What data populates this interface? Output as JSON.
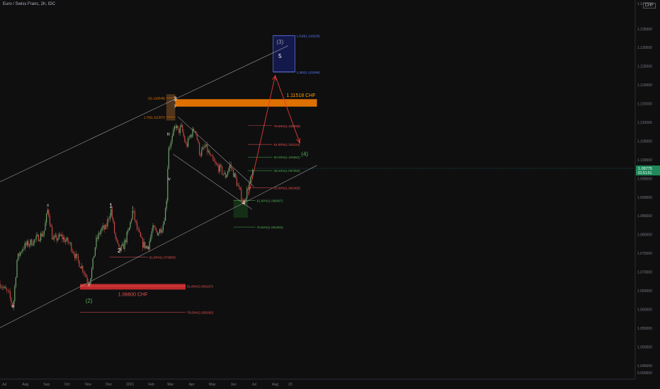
{
  "symbol_title": "Euro / Swiss Franc, 2h, IDC",
  "currency": "CHF",
  "chart_data": {
    "type": "candlestick",
    "instrument": "EURCHF",
    "x_ticks": [
      "Jul",
      "Aug",
      "Sep",
      "Oct",
      "Nov",
      "Dec",
      "2021",
      "Feb",
      "Mar",
      "Apr",
      "May",
      "Jun",
      "Jul",
      "Aug",
      "23"
    ],
    "y_ticks": [
      1.135,
      1.13,
      1.125,
      1.12,
      1.115,
      1.11,
      1.105,
      1.1,
      1.095,
      1.09,
      1.085,
      1.08,
      1.075,
      1.07,
      1.065,
      1.06,
      1.055,
      1.05,
      1.045
    ],
    "y_ticks_display": [
      "1.135000",
      "1.130000",
      "1.125000",
      "1.120000",
      "1.115000",
      "1.110000",
      "1.105000",
      "1.100000",
      "1.095000",
      "1.090000",
      "1.085000",
      "1.080000",
      "1.075000",
      "1.070000",
      "1.065000",
      "1.060000",
      "1.055000",
      "1.050000",
      "1.045000"
    ],
    "y_axis_top_label": "1.140000",
    "y_axis_bottom_label": "0.000000",
    "ylim": [
      1.0425,
      1.141
    ],
    "current_price": {
      "value": 1.0977,
      "label": "1.09775",
      "countdown": "01:51:51"
    },
    "price_path": [
      [
        "2020-06-25",
        1.067
      ],
      [
        "2020-07-01",
        1.0655
      ],
      [
        "2020-07-08",
        1.064
      ],
      [
        "2020-07-14",
        1.0605
      ],
      [
        "2020-07-20",
        1.0735
      ],
      [
        "2020-07-28",
        1.0765
      ],
      [
        "2020-08-05",
        1.0775
      ],
      [
        "2020-08-15",
        1.0785
      ],
      [
        "2020-08-28",
        1.0805
      ],
      [
        "2020-09-03",
        1.087
      ],
      [
        "2020-09-10",
        1.0785
      ],
      [
        "2020-09-22",
        1.0795
      ],
      [
        "2020-10-05",
        1.0775
      ],
      [
        "2020-10-15",
        1.0735
      ],
      [
        "2020-10-25",
        1.0705
      ],
      [
        "2020-11-02",
        1.0668
      ],
      [
        "2020-11-06",
        1.0705
      ],
      [
        "2020-11-12",
        1.078
      ],
      [
        "2020-11-20",
        1.0815
      ],
      [
        "2020-11-26",
        1.0815
      ],
      [
        "2020-12-04",
        1.0868
      ],
      [
        "2020-12-10",
        1.0795
      ],
      [
        "2020-12-16",
        1.0755
      ],
      [
        "2020-12-22",
        1.0768
      ],
      [
        "2020-12-30",
        1.081
      ],
      [
        "2021-01-05",
        1.0865
      ],
      [
        "2021-01-11",
        1.0815
      ],
      [
        "2021-01-19",
        1.0775
      ],
      [
        "2021-01-27",
        1.0765
      ],
      [
        "2021-02-03",
        1.0815
      ],
      [
        "2021-02-11",
        1.0805
      ],
      [
        "2021-02-18",
        1.0825
      ],
      [
        "2021-02-23",
        1.0882
      ],
      [
        "2021-02-26",
        1.1035
      ],
      [
        "2021-03-02",
        1.1045
      ],
      [
        "2021-03-05",
        1.1068
      ],
      [
        "2021-03-08",
        1.1095
      ],
      [
        "2021-03-12",
        1.1075
      ],
      [
        "2021-03-17",
        1.1085
      ],
      [
        "2021-03-24",
        1.1035
      ],
      [
        "2021-03-30",
        1.1065
      ],
      [
        "2021-04-06",
        1.1085
      ],
      [
        "2021-04-13",
        1.1015
      ],
      [
        "2021-04-21",
        1.1035
      ],
      [
        "2021-04-29",
        1.1005
      ],
      [
        "2021-05-06",
        1.0985
      ],
      [
        "2021-05-13",
        1.0975
      ],
      [
        "2021-05-20",
        1.0955
      ],
      [
        "2021-05-27",
        1.0985
      ],
      [
        "2021-06-03",
        1.0955
      ],
      [
        "2021-06-10",
        1.0915
      ],
      [
        "2021-06-16",
        1.0885
      ],
      [
        "2021-06-22",
        1.0925
      ],
      [
        "2021-06-29",
        1.0962
      ],
      [
        "2021-07-02",
        1.0975
      ]
    ],
    "wave_labels": [
      {
        "text": "w",
        "date": "2020-07-14",
        "price": 1.0605,
        "color": "#d1d4dc"
      },
      {
        "text": "x",
        "date": "2020-09-03",
        "price": 1.0875,
        "color": "#d1d4dc"
      },
      {
        "text": "y",
        "date": "2020-11-02",
        "price": 1.0665,
        "color": "#d1d4dc"
      },
      {
        "text": "(2)",
        "date": "2020-11-02",
        "price": 1.0618,
        "color": "#4caf50"
      },
      {
        "text": "1",
        "date": "2020-12-04",
        "price": 1.0872,
        "color": "#ffffff"
      },
      {
        "text": "2",
        "date": "2020-12-16",
        "price": 1.0752,
        "color": "#ffffff"
      },
      {
        "text": "i",
        "date": "2021-01-05",
        "price": 1.0868,
        "color": "#d1d4dc"
      },
      {
        "text": "ii",
        "date": "2021-01-27",
        "price": 1.0762,
        "color": "#d1d4dc"
      },
      {
        "text": "iii",
        "date": "2021-02-26",
        "price": 1.1065,
        "color": "#d1d4dc"
      },
      {
        "text": "iv",
        "date": "2021-02-27",
        "price": 1.0945,
        "color": "#d1d4dc"
      },
      {
        "text": "y",
        "date": "2021-03-08",
        "price": 1.1142,
        "color": "#d1d4dc"
      },
      {
        "text": "3",
        "date": "2021-03-08",
        "price": 1.1158,
        "color": "#ffffff"
      },
      {
        "text": "4",
        "date": "2021-06-16",
        "price": 1.088,
        "color": "#ffffff"
      },
      {
        "text": "(3)",
        "date": "2021-08-08",
        "price": 1.131,
        "color": "#9598a1"
      },
      {
        "text": "5",
        "date": "2021-08-08",
        "price": 1.1272,
        "color": "#ffffff"
      },
      {
        "text": "(4)",
        "date": "2021-09-13",
        "price": 1.101,
        "color": "#4caf50"
      }
    ],
    "zones": [
      {
        "name": "support-1.06600",
        "label": "1.06600 CHF",
        "from": "2020-10-20",
        "to": "2021-03-23",
        "top": 1.0668,
        "bottom": 1.0653,
        "color": "#e53935"
      },
      {
        "name": "resistance-1.11518",
        "label": "1.11518 CHF",
        "from": "2021-03-08",
        "to": "2021-10-01",
        "top": 1.1162,
        "bottom": 1.1142,
        "color": "#f57c00"
      },
      {
        "name": "target-box",
        "label": "",
        "from": "2021-07-29",
        "to": "2021-08-30",
        "top": 1.1332,
        "bottom": 1.1235,
        "color": "#283593"
      },
      {
        "name": "wave3-box",
        "label": "",
        "from": "2021-02-23",
        "to": "2021-03-08",
        "top": 1.1175,
        "bottom": 1.1105,
        "color": "#c87533"
      },
      {
        "name": "wave4-support-box",
        "label": "",
        "from": "2021-06-01",
        "to": "2021-06-22",
        "top": 1.0893,
        "bottom": 1.0845,
        "color": "#1b5e20"
      }
    ],
    "fib_levels": [
      {
        "label": "61.80%(1.066157)",
        "price": 1.0662,
        "from": "2020-10-20",
        "to": "2021-03-23",
        "color": "#ef5350"
      },
      {
        "label": "78.60%(1.059180)",
        "price": 1.0592,
        "from": "2020-10-20",
        "to": "2021-03-23",
        "color": "#ef5350"
      },
      {
        "label": "61.80%(1.073983)",
        "price": 1.074,
        "from": "2020-12-02",
        "to": "2021-01-27",
        "color": "#ef5350"
      },
      {
        "label": "1.618(1.133228)",
        "price": 1.1332,
        "from": "2021-07-29",
        "to": "2021-08-30",
        "color": "#5c7cfa"
      },
      {
        "label": "1.382(1.123396)",
        "price": 1.1234,
        "from": "2021-07-29",
        "to": "2021-08-30",
        "color": "#5c7cfa"
      },
      {
        "label": "2(1.116549)",
        "price": 1.1165,
        "from": "2021-02-23",
        "to": "2021-03-08",
        "color": "#f57c00"
      },
      {
        "label": "1.76(1.111357)",
        "price": 1.1114,
        "from": "2021-02-23",
        "to": "2021-03-08",
        "color": "#f57c00"
      },
      {
        "label": "78.60%(1.109098)",
        "price": 1.1091,
        "from": "2021-06-22",
        "to": "2021-07-28",
        "color": "#ef5350"
      },
      {
        "label": "61.80%(1.104114)",
        "price": 1.1041,
        "from": "2021-06-22",
        "to": "2021-07-28",
        "color": "#ef5350"
      },
      {
        "label": "50.00%(1.100652)",
        "price": 1.1007,
        "from": "2021-06-22",
        "to": "2021-07-28",
        "color": "#4caf50"
      },
      {
        "label": "38.20%(1.097082)",
        "price": 1.0971,
        "from": "2021-06-22",
        "to": "2021-07-28",
        "color": "#4caf50"
      },
      {
        "label": "23.60%(1.092465)",
        "price": 1.0925,
        "from": "2021-06-22",
        "to": "2021-07-28",
        "color": "#ef5350"
      },
      {
        "label": "61.80%(1.089097)",
        "price": 1.0891,
        "from": "2021-06-01",
        "to": "2021-07-03",
        "color": "#4caf50"
      },
      {
        "label": "78.60%(1.081993)",
        "price": 1.082,
        "from": "2021-06-01",
        "to": "2021-07-03",
        "color": "#4caf50"
      }
    ],
    "trend_lines": [
      {
        "name": "upper-channel-line",
        "from": [
          "2020-06-25",
          1.0941
        ],
        "to": [
          "2021-08-20",
          1.1305
        ],
        "color": "#c8c8c8"
      },
      {
        "name": "lower-channel-line",
        "from": [
          "2020-06-25",
          1.0551
        ],
        "to": [
          "2021-10-01",
          1.0985
        ],
        "color": "#c8c8c8"
      },
      {
        "name": "descending-channel-top",
        "from": [
          "2021-03-12",
          1.1115
        ],
        "to": [
          "2021-07-01",
          1.0928
        ],
        "color": "#c8c8c8"
      },
      {
        "name": "descending-channel-bottom",
        "from": [
          "2021-03-05",
          1.1015
        ],
        "to": [
          "2021-06-28",
          1.0868
        ],
        "color": "#c8c8c8"
      }
    ],
    "projection_path": [
      [
        "2021-06-23",
        1.0905
      ],
      [
        "2021-08-01",
        1.1225
      ],
      [
        "2021-09-06",
        1.1045
      ]
    ],
    "projection_color": "#e53935"
  }
}
